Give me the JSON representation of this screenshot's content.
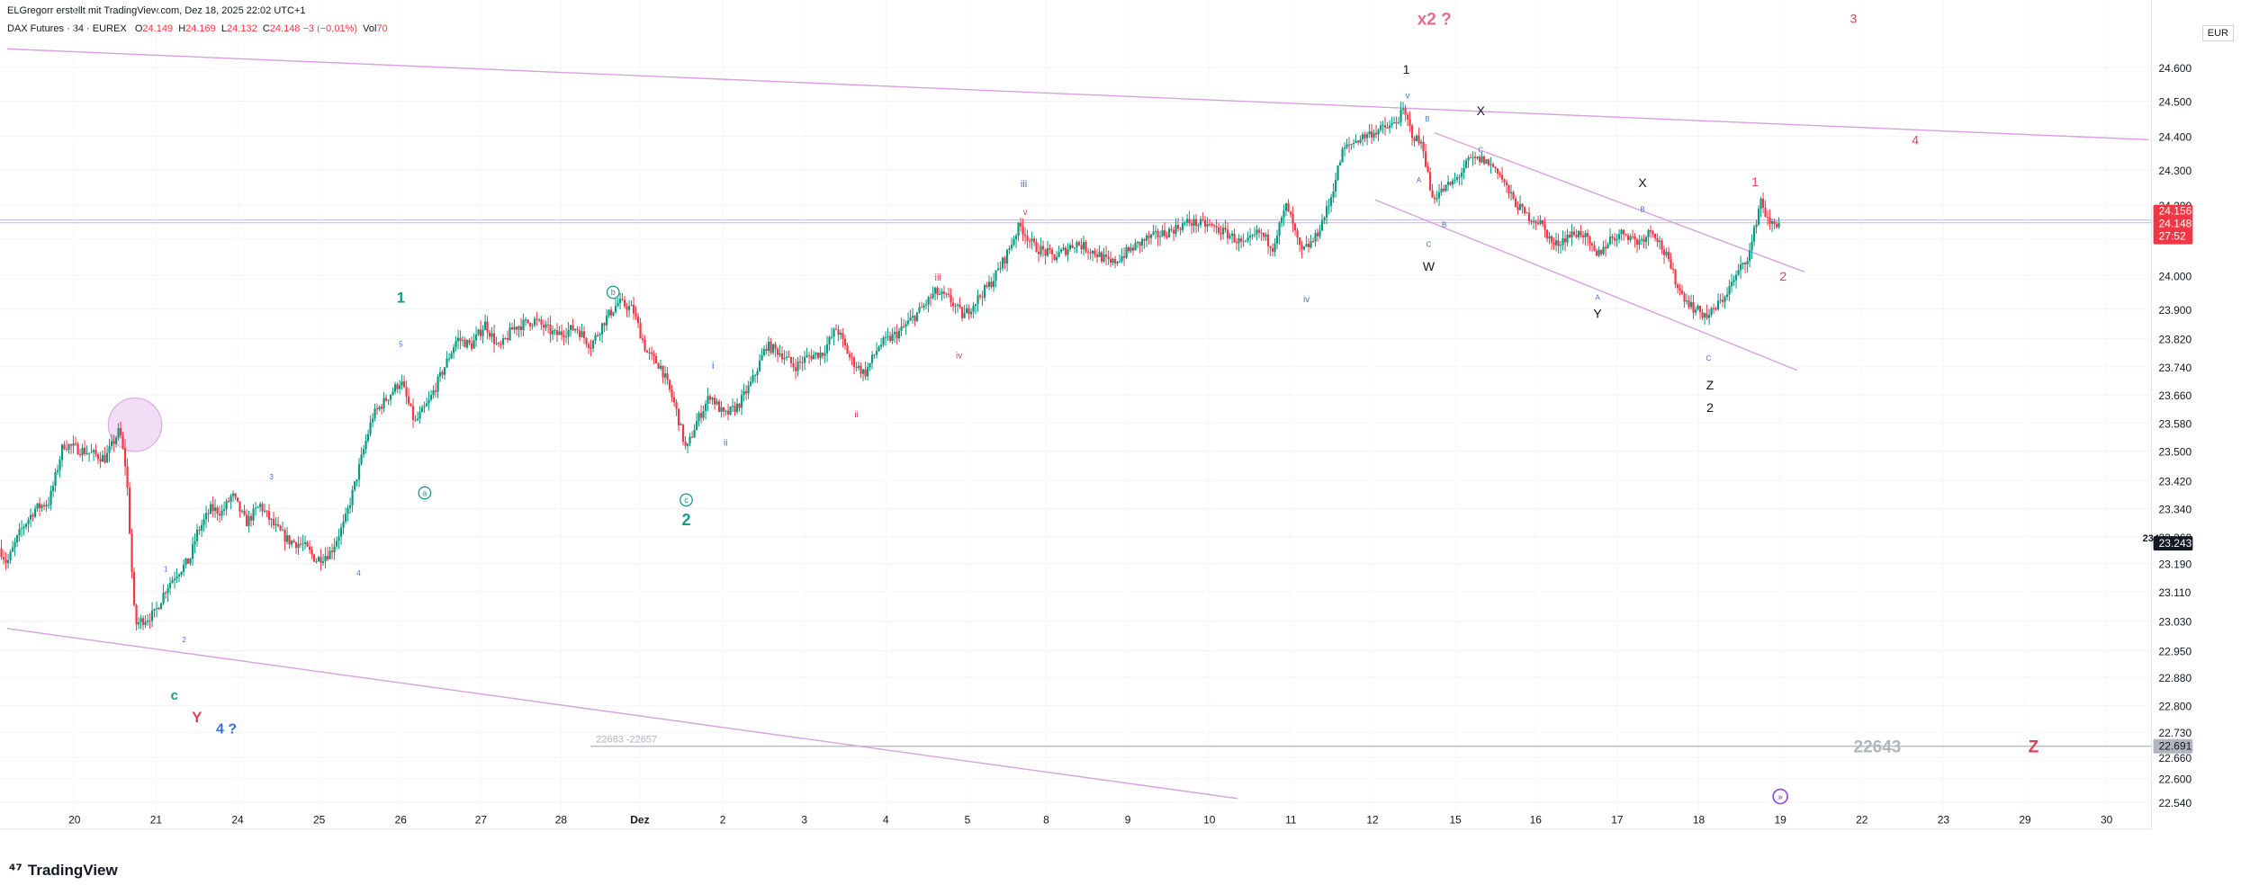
{
  "header": {
    "title_line": "ELGregorr erstellt mit TradingView.com, Dez 18, 2025 22:02 UTC+1",
    "symbol": "DAX Futures · 34 · EUREX",
    "o_label": "O",
    "o": "24.149",
    "h_label": "H",
    "h": "24.169",
    "l_label": "L",
    "l": "24.132",
    "c_label": "C",
    "c": "24.148",
    "change": "−3 (−0,01%)",
    "vol_label": "Vol",
    "vol": "70"
  },
  "currency": "EUR",
  "footer_logo": "TradingView",
  "colors": {
    "up": "#089981",
    "down": "#f23645",
    "teal": "#1a9a8a",
    "blue": "#3b6fd8",
    "red": "#e0405a",
    "pink": "#e86a92",
    "trend": "#d8a0e0",
    "black": "#131722"
  },
  "chart_data": {
    "type": "candlestick",
    "y_ticks": [
      "24.600",
      "24.500",
      "24.400",
      "24.300",
      "24.200",
      "24.100",
      "24.000",
      "23.900",
      "23.820",
      "23.740",
      "23.660",
      "23.580",
      "23.500",
      "23.420",
      "23.340",
      "23.260",
      "23.190",
      "23.110",
      "23.030",
      "22.950",
      "22.880",
      "22.800",
      "22.730",
      "22.660",
      "22.600",
      "22.540"
    ],
    "x_ticks": [
      "20",
      "21",
      "24",
      "25",
      "26",
      "27",
      "28",
      "Dez",
      "2",
      "3",
      "4",
      "5",
      "8",
      "9",
      "10",
      "11",
      "12",
      "15",
      "16",
      "17",
      "18",
      "19",
      "22",
      "23",
      "29",
      "30"
    ],
    "price_labels": {
      "high": "24.156",
      "last": "24.148",
      "countdown": "27:52",
      "mark_value": "23.243",
      "mark_prefix": "234",
      "level": "22.691"
    },
    "close_path": [
      [
        0,
        23.23
      ],
      [
        5,
        23.19
      ],
      [
        15,
        23.28
      ],
      [
        25,
        23.34
      ],
      [
        35,
        23.36
      ],
      [
        45,
        23.52
      ],
      [
        60,
        23.5
      ],
      [
        75,
        23.48
      ],
      [
        85,
        23.56
      ],
      [
        90,
        23.44
      ],
      [
        93,
        23.22
      ],
      [
        96,
        23.02
      ],
      [
        100,
        23.03
      ],
      [
        110,
        23.05
      ],
      [
        118,
        23.12
      ],
      [
        125,
        23.16
      ],
      [
        135,
        23.2
      ],
      [
        140,
        23.27
      ],
      [
        150,
        23.34
      ],
      [
        158,
        23.33
      ],
      [
        165,
        23.38
      ],
      [
        175,
        23.3
      ],
      [
        185,
        23.35
      ],
      [
        195,
        23.29
      ],
      [
        205,
        23.25
      ],
      [
        215,
        23.24
      ],
      [
        225,
        23.2
      ],
      [
        235,
        23.22
      ],
      [
        245,
        23.3
      ],
      [
        255,
        23.45
      ],
      [
        265,
        23.6
      ],
      [
        275,
        23.65
      ],
      [
        285,
        23.7
      ],
      [
        295,
        23.58
      ],
      [
        305,
        23.64
      ],
      [
        315,
        23.73
      ],
      [
        325,
        23.82
      ],
      [
        335,
        23.8
      ],
      [
        345,
        23.86
      ],
      [
        355,
        23.79
      ],
      [
        365,
        23.85
      ],
      [
        380,
        23.87
      ],
      [
        395,
        23.83
      ],
      [
        410,
        23.85
      ],
      [
        420,
        23.8
      ],
      [
        430,
        23.87
      ],
      [
        440,
        23.92
      ],
      [
        450,
        23.9
      ],
      [
        460,
        23.78
      ],
      [
        470,
        23.74
      ],
      [
        480,
        23.63
      ],
      [
        488,
        23.5
      ],
      [
        495,
        23.58
      ],
      [
        505,
        23.66
      ],
      [
        515,
        23.6
      ],
      [
        525,
        23.63
      ],
      [
        535,
        23.7
      ],
      [
        545,
        23.8
      ],
      [
        555,
        23.78
      ],
      [
        565,
        23.74
      ],
      [
        575,
        23.77
      ],
      [
        585,
        23.78
      ],
      [
        595,
        23.85
      ],
      [
        605,
        23.76
      ],
      [
        615,
        23.72
      ],
      [
        625,
        23.8
      ],
      [
        640,
        23.84
      ],
      [
        655,
        23.9
      ],
      [
        665,
        23.95
      ],
      [
        675,
        23.93
      ],
      [
        685,
        23.88
      ],
      [
        695,
        23.93
      ],
      [
        705,
        23.98
      ],
      [
        715,
        24.05
      ],
      [
        725,
        24.14
      ],
      [
        735,
        24.08
      ],
      [
        750,
        24.05
      ],
      [
        765,
        24.09
      ],
      [
        780,
        24.06
      ],
      [
        790,
        24.03
      ],
      [
        800,
        24.06
      ],
      [
        815,
        24.1
      ],
      [
        830,
        24.12
      ],
      [
        845,
        24.15
      ],
      [
        860,
        24.14
      ],
      [
        875,
        24.11
      ],
      [
        885,
        24.08
      ],
      [
        895,
        24.12
      ],
      [
        905,
        24.08
      ],
      [
        915,
        24.2
      ],
      [
        925,
        24.06
      ],
      [
        935,
        24.1
      ],
      [
        945,
        24.2
      ],
      [
        955,
        24.36
      ],
      [
        965,
        24.39
      ],
      [
        975,
        24.41
      ],
      [
        990,
        24.43
      ],
      [
        998,
        24.47
      ],
      [
        1005,
        24.4
      ],
      [
        1012,
        24.37
      ],
      [
        1018,
        24.22
      ],
      [
        1025,
        24.24
      ],
      [
        1035,
        24.27
      ],
      [
        1045,
        24.33
      ],
      [
        1055,
        24.33
      ],
      [
        1065,
        24.3
      ],
      [
        1075,
        24.22
      ],
      [
        1085,
        24.17
      ],
      [
        1095,
        24.15
      ],
      [
        1105,
        24.08
      ],
      [
        1115,
        24.11
      ],
      [
        1125,
        24.12
      ],
      [
        1135,
        24.05
      ],
      [
        1145,
        24.1
      ],
      [
        1155,
        24.12
      ],
      [
        1165,
        24.09
      ],
      [
        1175,
        24.13
      ],
      [
        1185,
        24.05
      ],
      [
        1195,
        23.95
      ],
      [
        1205,
        23.9
      ],
      [
        1215,
        23.88
      ],
      [
        1225,
        23.93
      ],
      [
        1235,
        24.0
      ],
      [
        1245,
        24.07
      ],
      [
        1252,
        24.22
      ],
      [
        1258,
        24.14
      ],
      [
        1265,
        24.15
      ]
    ],
    "trendlines": [
      {
        "from": [
          5,
          24.655
        ],
        "to": [
          1528,
          24.39
        ]
      },
      {
        "from": [
          5,
          23.01
        ],
        "to": [
          880,
          22.55
        ]
      },
      {
        "from": [
          1020,
          24.41
        ],
        "to": [
          1283,
          24.01
        ]
      },
      {
        "from": [
          978,
          24.215
        ],
        "to": [
          1278,
          23.73
        ]
      }
    ],
    "hlines": [
      24.156,
      24.148
    ],
    "level_line": {
      "from_x": 420,
      "to_x": 1530,
      "price": 22.691,
      "label": "22683 -22657"
    },
    "circle": {
      "x": 96,
      "price": 23.575
    },
    "annotations": [
      {
        "x": 1020,
        "price": 24.745,
        "text": "x2 ?",
        "color": "#e86a92",
        "size": 19,
        "weight": "bold"
      },
      {
        "x": 1318,
        "price": 24.745,
        "text": "3",
        "color": "#e0405a",
        "size": 14
      },
      {
        "x": 1000,
        "price": 24.595,
        "text": "1",
        "color": "#131722",
        "size": 14
      },
      {
        "x": 1001,
        "price": 24.517,
        "text": "v",
        "color": "#3b6fd8",
        "size": 10
      },
      {
        "x": 1053,
        "price": 24.473,
        "text": "X",
        "color": "#131722",
        "size": 14
      },
      {
        "x": 1362,
        "price": 24.39,
        "text": "4",
        "color": "#e0405a",
        "size": 14
      },
      {
        "x": 1015,
        "price": 24.45,
        "text": "B",
        "color": "#3b6fd8",
        "size": 8
      },
      {
        "x": 1053,
        "price": 24.36,
        "text": "C",
        "color": "#3b6fd8",
        "size": 8
      },
      {
        "x": 1009,
        "price": 24.272,
        "text": "A",
        "color": "#3b6fd8",
        "size": 8
      },
      {
        "x": 728,
        "price": 24.262,
        "text": "iii",
        "color": "#3b6fd8",
        "size": 11
      },
      {
        "x": 1168,
        "price": 24.265,
        "text": "X",
        "color": "#131722",
        "size": 14
      },
      {
        "x": 1248,
        "price": 24.267,
        "text": "1",
        "color": "#e0405a",
        "size": 14
      },
      {
        "x": 1168,
        "price": 24.188,
        "text": "B",
        "color": "#3b6fd8",
        "size": 8
      },
      {
        "x": 729,
        "price": 24.18,
        "text": "v",
        "color": "#e0405a",
        "size": 10
      },
      {
        "x": 1027,
        "price": 24.143,
        "text": "B",
        "color": "#3b6fd8",
        "size": 8
      },
      {
        "x": 1016,
        "price": 24.085,
        "text": "C",
        "color": "#3b6fd8",
        "size": 8
      },
      {
        "x": 1016,
        "price": 24.025,
        "text": "W",
        "color": "#131722",
        "size": 14
      },
      {
        "x": 1268,
        "price": 23.998,
        "text": "2",
        "color": "#e0405a",
        "size": 14
      },
      {
        "x": 667,
        "price": 23.995,
        "text": "iii",
        "color": "#e0405a",
        "size": 11
      },
      {
        "x": 285,
        "price": 23.935,
        "text": "1",
        "color": "#1a9a8a",
        "size": 17,
        "weight": "bold"
      },
      {
        "x": 436,
        "price": 23.95,
        "text": "b",
        "color": "#1a9a8a",
        "size": 9,
        "circled": true
      },
      {
        "x": 929,
        "price": 23.93,
        "text": "iv",
        "color": "#3b6fd8",
        "size": 10
      },
      {
        "x": 1136,
        "price": 23.935,
        "text": "A",
        "color": "#3b6fd8",
        "size": 8
      },
      {
        "x": 1136,
        "price": 23.888,
        "text": "Y",
        "color": "#131722",
        "size": 14
      },
      {
        "x": 285,
        "price": 23.805,
        "text": "5",
        "color": "#3b6fd8",
        "size": 8
      },
      {
        "x": 545,
        "price": 23.8,
        "text": "i",
        "color": "#e0405a",
        "size": 11
      },
      {
        "x": 682,
        "price": 23.773,
        "text": "iv",
        "color": "#e0405a",
        "size": 10
      },
      {
        "x": 507,
        "price": 23.745,
        "text": "i",
        "color": "#3b6fd8",
        "size": 11
      },
      {
        "x": 1215,
        "price": 23.765,
        "text": "C",
        "color": "#3b6fd8",
        "size": 8
      },
      {
        "x": 1216,
        "price": 23.688,
        "text": "Z",
        "color": "#131722",
        "size": 14
      },
      {
        "x": 1216,
        "price": 23.625,
        "text": "2",
        "color": "#131722",
        "size": 14
      },
      {
        "x": 609,
        "price": 23.605,
        "text": "ii",
        "color": "#e0405a",
        "size": 10
      },
      {
        "x": 516,
        "price": 23.525,
        "text": "ii",
        "color": "#3b6fd8",
        "size": 10
      },
      {
        "x": 193,
        "price": 23.43,
        "text": "3",
        "color": "#3b6fd8",
        "size": 8
      },
      {
        "x": 302,
        "price": 23.385,
        "text": "a",
        "color": "#1a9a8a",
        "size": 9,
        "circled": true
      },
      {
        "x": 488,
        "price": 23.365,
        "text": "c",
        "color": "#1a9a8a",
        "size": 9,
        "circled": true
      },
      {
        "x": 488,
        "price": 23.31,
        "text": "2",
        "color": "#1a9a8a",
        "size": 18,
        "weight": "bold"
      },
      {
        "x": 118,
        "price": 23.175,
        "text": "1",
        "color": "#3b6fd8",
        "size": 8
      },
      {
        "x": 255,
        "price": 23.163,
        "text": "4",
        "color": "#3b6fd8",
        "size": 8
      },
      {
        "x": 131,
        "price": 22.98,
        "text": "2",
        "color": "#3b6fd8",
        "size": 8
      },
      {
        "x": 124,
        "price": 22.83,
        "text": "c",
        "color": "#1a9a8a",
        "size": 15,
        "weight": "bold"
      },
      {
        "x": 140,
        "price": 22.77,
        "text": "Y",
        "color": "#e0405a",
        "size": 17,
        "weight": "bold"
      },
      {
        "x": 161,
        "price": 22.74,
        "text": "4 ?",
        "color": "#3b6fd8",
        "size": 16,
        "weight": "bold"
      },
      {
        "x": 1335,
        "price": 22.691,
        "text": "22643",
        "color": "#b2b5be",
        "size": 19,
        "weight": "bold"
      },
      {
        "x": 1446,
        "price": 22.691,
        "text": "Z",
        "color": "#e0405a",
        "size": 19,
        "weight": "bold"
      }
    ]
  }
}
